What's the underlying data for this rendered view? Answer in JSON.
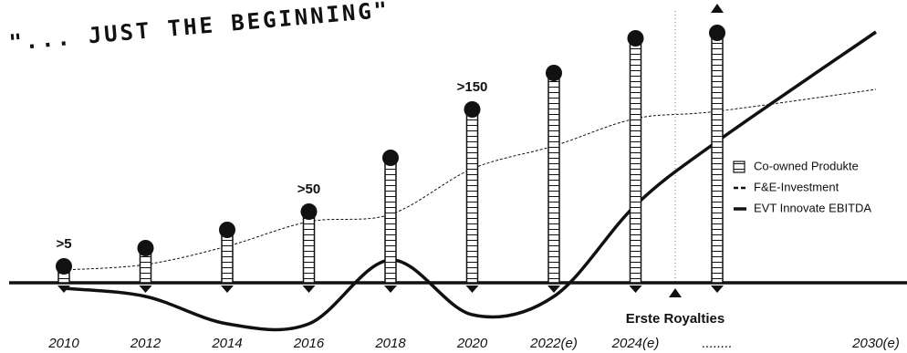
{
  "chart_data": {
    "type": "bar",
    "title": "\"... JUST THE BEGINNING\"",
    "categories": [
      "2010",
      "2012",
      "2014",
      "2016",
      "2018",
      "2020",
      "2022(e)",
      "2024(e)",
      "........",
      "2030(e)"
    ],
    "ylim": [
      -60,
      290
    ],
    "series": [
      {
        "name": "Co-owned Produkte",
        "type": "bar",
        "color": "#111111",
        "values": [
          18,
          38,
          58,
          78,
          137,
          190,
          230,
          268,
          274,
          null
        ]
      },
      {
        "name": "F&E-Investment",
        "type": "line",
        "dash": true,
        "color": "#111111",
        "values": [
          14,
          20,
          40,
          67,
          75,
          125,
          150,
          180,
          188,
          212
        ]
      },
      {
        "name": "EVT Innovate EBITDA",
        "type": "line",
        "dash": false,
        "color": "#111111",
        "values": [
          -6,
          -15,
          -45,
          -45,
          25,
          -35,
          -15,
          85,
          155,
          275
        ]
      }
    ],
    "annotations": [
      {
        "category": "2010",
        "text": ">5"
      },
      {
        "category": "2016",
        "text": ">50"
      },
      {
        "category": "2020",
        "text": ">150"
      }
    ],
    "marker_label": "Erste Royalties"
  }
}
